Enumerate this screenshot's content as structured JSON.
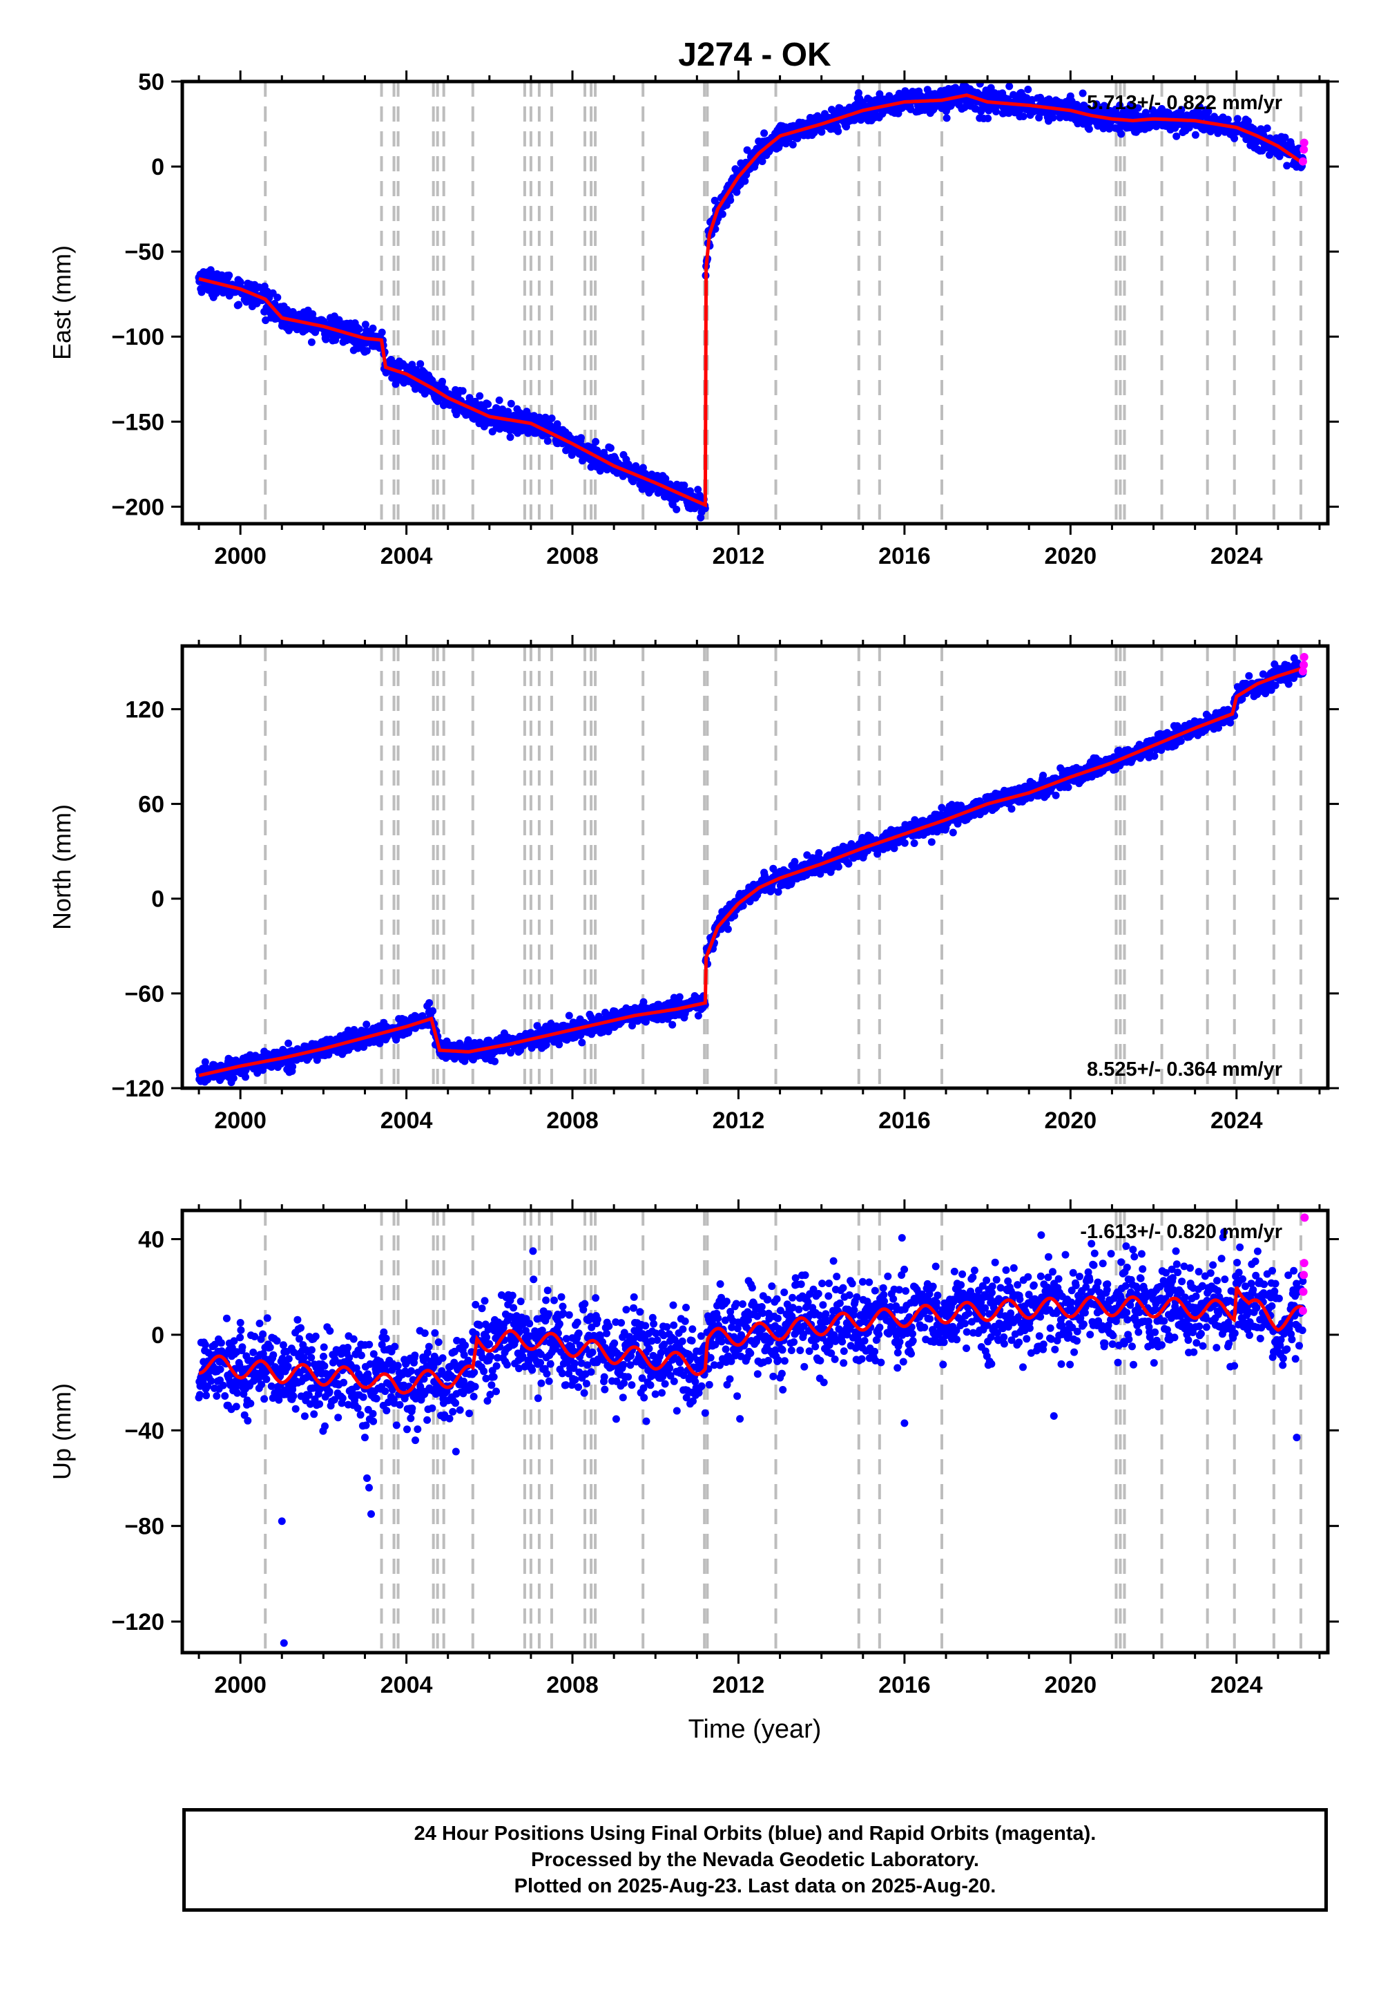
{
  "title": "J274 - OK",
  "xlabel": "Time (year)",
  "footer": {
    "line1": "24 Hour Positions Using Final Orbits (blue) and Rapid Orbits (magenta).",
    "line2": "Processed by the Nevada Geodetic Laboratory.",
    "line3": "Plotted on 2025-Aug-23. Last data on 2025-Aug-20."
  },
  "colors": {
    "final": "#0000ff",
    "rapid": "#ff00ff",
    "model": "#ff0000",
    "event_lines": "#bdbdbd"
  },
  "chart_data": [
    {
      "type": "scatter",
      "component": "east",
      "ylabel": "East (mm)",
      "xlim": [
        1998.6,
        2026.2
      ],
      "ylim": [
        -210,
        50
      ],
      "xticks": [
        2000,
        2004,
        2008,
        2012,
        2016,
        2020,
        2024
      ],
      "yticks": [
        50,
        0,
        -50,
        -100,
        -150,
        -200
      ],
      "rate_label": "5.713+/- 0.822 mm/yr",
      "rate_position": "top-right",
      "event_lines": [
        2000.6,
        2003.4,
        2003.7,
        2003.8,
        2004.65,
        2004.75,
        2004.9,
        2005.6,
        2006.85,
        2007.0,
        2007.2,
        2007.5,
        2008.3,
        2008.45,
        2008.55,
        2009.7,
        2011.18,
        2011.25,
        2012.9,
        2014.9,
        2015.4,
        2016.9,
        2021.1,
        2021.2,
        2021.3,
        2022.2,
        2023.3,
        2023.95,
        2024.9,
        2025.55
      ],
      "model_x": [
        1999.0,
        2000.0,
        2000.6,
        2001.0,
        2002.0,
        2003.0,
        2003.4,
        2003.5,
        2004.0,
        2004.6,
        2005.0,
        2006.0,
        2007.0,
        2008.0,
        2009.0,
        2010.0,
        2011.2,
        2011.21,
        2011.3,
        2011.5,
        2012.0,
        2012.5,
        2013.0,
        2014.0,
        2015.0,
        2016.0,
        2016.9,
        2017.5,
        2018.0,
        2019.0,
        2020.0,
        2020.5,
        2021.0,
        2021.5,
        2022.0,
        2023.0,
        2024.0,
        2024.5,
        2025.0,
        2025.6
      ],
      "model_y": [
        -66,
        -72,
        -78,
        -89,
        -94,
        -101,
        -102,
        -118,
        -122,
        -130,
        -136,
        -147,
        -151,
        -163,
        -176,
        -186,
        -199,
        -62,
        -40,
        -25,
        -6,
        8,
        18,
        25,
        33,
        38,
        39,
        42,
        38,
        36,
        33,
        30,
        28,
        27,
        28,
        27,
        23,
        18,
        12,
        2
      ],
      "noise": 3.5,
      "rapid_x": [
        2025.6,
        2025.62,
        2025.63
      ],
      "rapid_y": [
        3,
        10,
        14
      ]
    },
    {
      "type": "scatter",
      "component": "north",
      "ylabel": "North (mm)",
      "xlim": [
        1998.6,
        2026.2
      ],
      "ylim": [
        -120,
        160
      ],
      "xticks": [
        2000,
        2004,
        2008,
        2012,
        2016,
        2020,
        2024
      ],
      "yticks": [
        120,
        60,
        0,
        -60,
        -120
      ],
      "rate_label": "8.525+/- 0.364 mm/yr",
      "rate_position": "bottom-right",
      "event_lines": [
        2000.6,
        2003.4,
        2003.7,
        2003.8,
        2004.65,
        2004.75,
        2004.9,
        2005.6,
        2006.85,
        2007.0,
        2007.2,
        2007.5,
        2008.3,
        2008.45,
        2008.55,
        2009.7,
        2011.18,
        2011.25,
        2012.9,
        2014.9,
        2015.4,
        2016.9,
        2021.1,
        2021.2,
        2021.3,
        2022.2,
        2023.3,
        2023.95,
        2024.9,
        2025.55
      ],
      "model_x": [
        1999.0,
        2000.0,
        2001.0,
        2002.0,
        2003.0,
        2004.0,
        2004.6,
        2004.8,
        2005.5,
        2006.5,
        2007.5,
        2008.5,
        2009.5,
        2010.5,
        2011.2,
        2011.21,
        2011.5,
        2012.0,
        2012.5,
        2013.0,
        2014.0,
        2015.0,
        2016.0,
        2017.0,
        2018.0,
        2019.0,
        2020.0,
        2021.0,
        2022.0,
        2023.0,
        2023.9,
        2024.0,
        2024.5,
        2025.0,
        2025.6
      ],
      "model_y": [
        -112,
        -106,
        -101,
        -95,
        -88,
        -81,
        -76,
        -96,
        -97,
        -92,
        -86,
        -80,
        -74,
        -70,
        -66,
        -38,
        -18,
        -3,
        7,
        13,
        22,
        32,
        41,
        50,
        60,
        67,
        77,
        86,
        97,
        108,
        117,
        128,
        136,
        141,
        146
      ],
      "noise": 3,
      "rapid_x": [
        2025.6,
        2025.62,
        2025.63
      ],
      "rapid_y": [
        144,
        148,
        153
      ],
      "spike_x": [
        2004.5,
        2004.55
      ],
      "spike_y": [
        -68,
        -66
      ]
    },
    {
      "type": "scatter",
      "component": "up",
      "ylabel": "Up (mm)",
      "xlim": [
        1998.6,
        2026.2
      ],
      "ylim": [
        -133,
        52
      ],
      "xticks": [
        2000,
        2004,
        2008,
        2012,
        2016,
        2020,
        2024
      ],
      "yticks": [
        40,
        0,
        -40,
        -80,
        -120
      ],
      "rate_label": "-1.613+/- 0.820 mm/yr",
      "rate_position": "top-right",
      "event_lines": [
        2000.6,
        2003.4,
        2003.7,
        2003.8,
        2004.65,
        2004.75,
        2004.9,
        2005.6,
        2006.85,
        2007.0,
        2007.2,
        2007.5,
        2008.3,
        2008.45,
        2008.55,
        2009.7,
        2011.18,
        2011.25,
        2012.9,
        2014.9,
        2015.4,
        2016.9,
        2021.1,
        2021.2,
        2021.3,
        2022.2,
        2023.3,
        2023.95,
        2024.9,
        2025.55
      ],
      "model_x": [
        1999.0,
        2001.0,
        2003.0,
        2003.8,
        2004.0,
        2005.0,
        2005.6,
        2005.7,
        2007.0,
        2009.0,
        2011.2,
        2011.25,
        2013.0,
        2015.0,
        2017.0,
        2019.0,
        2021.0,
        2023.0,
        2023.95,
        2024.0,
        2024.3,
        2025.0,
        2025.6
      ],
      "model_y": [
        -12,
        -16,
        -18,
        -22,
        -20,
        -18,
        -17,
        -3,
        -2,
        -8,
        -13,
        -2,
        2,
        6,
        9,
        11,
        12,
        11,
        10,
        24,
        12,
        6,
        8
      ],
      "noise": 9,
      "seasonal": 4,
      "outlier_x": [
        2001.0,
        2001.05,
        2003.0,
        2003.05,
        2003.1,
        2003.15,
        2007.05,
        2016.0,
        2019.6,
        2023.7,
        2025.45
      ],
      "outlier_y": [
        -78,
        -129,
        -43,
        -60,
        -64,
        -75,
        35,
        -37,
        -34,
        43,
        -43
      ],
      "rapid_x": [
        2025.6,
        2025.61,
        2025.62,
        2025.63,
        2025.64
      ],
      "rapid_y": [
        10,
        18,
        25,
        30,
        49
      ]
    }
  ]
}
